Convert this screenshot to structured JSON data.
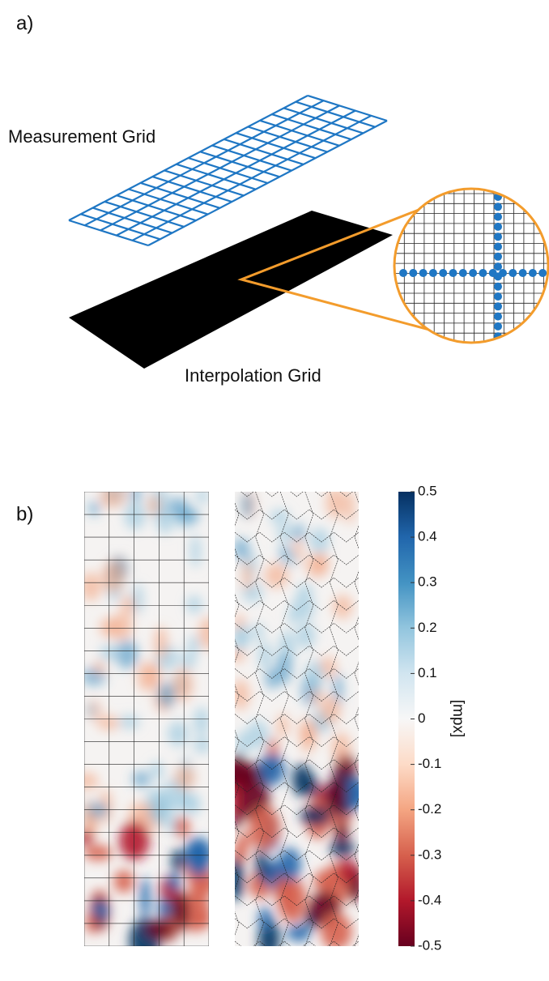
{
  "panel_a": {
    "label": "a)",
    "measurement_grid_label": "Measurement Grid",
    "interpolation_grid_label": "Interpolation Grid"
  },
  "panel_b": {
    "label": "b)",
    "colorbar": {
      "label": "[mpx]",
      "ticks": [
        0.5,
        0.4,
        0.3,
        0.2,
        0.1,
        0,
        -0.1,
        -0.2,
        -0.3,
        -0.4,
        -0.5
      ]
    }
  }
}
